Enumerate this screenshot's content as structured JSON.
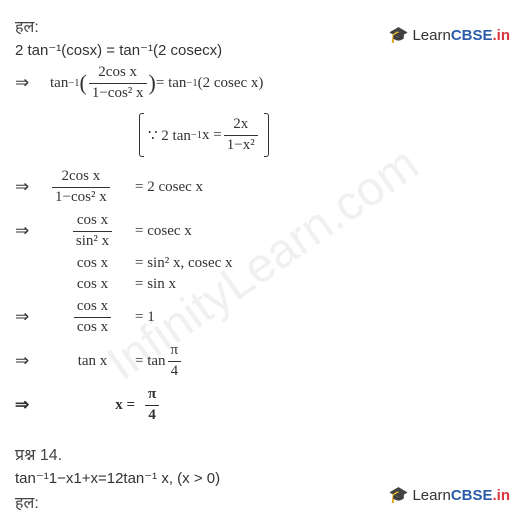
{
  "watermark": "InfinityLearn.com",
  "logo": {
    "learn": "Learn",
    "cbse": "CBSE",
    "in": ".in"
  },
  "hal": "हल:",
  "eq_given": "2 tan⁻¹(cosx) = tan⁻¹(2 cosecx)",
  "step1": {
    "pre": "tan",
    "exp": "−1",
    "num": "2cos x",
    "den": "1−cos² x",
    "rhs_pre": "= tan",
    "rhs_exp": "−1",
    "rhs": "(2 cosec x)"
  },
  "identity": {
    "because": "∵ 2 tan",
    "exp": "−1",
    "x": " x =",
    "num": "2x",
    "den": "1−x²"
  },
  "step2": {
    "num": "2cos x",
    "den": "1−cos² x",
    "rhs": "= 2 cosec x"
  },
  "step3": {
    "num": "cos x",
    "den": "sin² x",
    "rhs": "= cosec x"
  },
  "step4": {
    "lhs": "cos x",
    "rhs": "= sin² x, cosec x"
  },
  "step5": {
    "lhs": "cos x",
    "rhs": "= sin x"
  },
  "step6": {
    "num": "cos x",
    "den": "cos x",
    "rhs": "= 1"
  },
  "step7": {
    "lhs": "tan x",
    "rhs_pre": "= tan",
    "num": "π",
    "den": "4"
  },
  "step8": {
    "lhs": "x =",
    "num": "π",
    "den": "4"
  },
  "q14_label": "प्रश्न 14.",
  "q14_eq": "tan⁻¹1−x1+x=12tan⁻¹ x, (x > 0)",
  "hal2": "हल:",
  "arrow": "⇒"
}
